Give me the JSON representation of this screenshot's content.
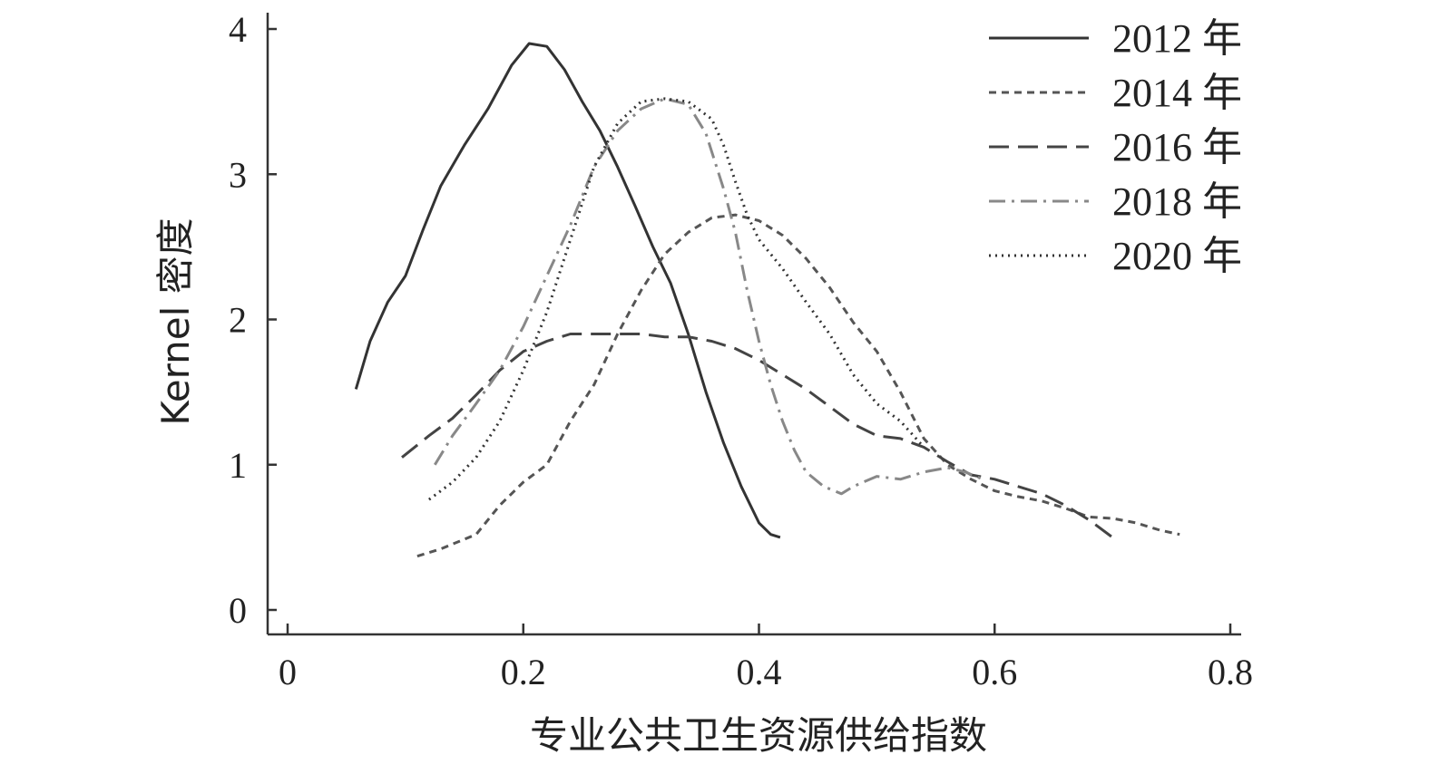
{
  "chart_data": {
    "type": "line",
    "title": "",
    "xlabel": "专业公共卫生资源供给指数",
    "ylabel": "Kernel 密度",
    "xlim": [
      0,
      0.8
    ],
    "ylim": [
      0,
      4
    ],
    "xticks": [
      "0",
      "0.2",
      "0.4",
      "0.6",
      "0.8"
    ],
    "yticks": [
      "0",
      "1",
      "2",
      "3",
      "4"
    ],
    "grid": false,
    "legend_position": "top-right",
    "series": [
      {
        "name": "2012 年",
        "color": "#333333",
        "style": "solid",
        "points": [
          [
            0.058,
            1.52
          ],
          [
            0.07,
            1.85
          ],
          [
            0.085,
            2.12
          ],
          [
            0.1,
            2.3
          ],
          [
            0.115,
            2.62
          ],
          [
            0.13,
            2.92
          ],
          [
            0.15,
            3.2
          ],
          [
            0.17,
            3.45
          ],
          [
            0.19,
            3.75
          ],
          [
            0.205,
            3.9
          ],
          [
            0.22,
            3.88
          ],
          [
            0.235,
            3.72
          ],
          [
            0.25,
            3.5
          ],
          [
            0.265,
            3.3
          ],
          [
            0.28,
            3.05
          ],
          [
            0.295,
            2.78
          ],
          [
            0.31,
            2.5
          ],
          [
            0.325,
            2.25
          ],
          [
            0.34,
            1.9
          ],
          [
            0.355,
            1.5
          ],
          [
            0.37,
            1.15
          ],
          [
            0.385,
            0.85
          ],
          [
            0.4,
            0.6
          ],
          [
            0.41,
            0.52
          ],
          [
            0.418,
            0.5
          ]
        ]
      },
      {
        "name": "2014 年",
        "color": "#555555",
        "style": "short-dash",
        "points": [
          [
            0.11,
            0.37
          ],
          [
            0.13,
            0.42
          ],
          [
            0.16,
            0.52
          ],
          [
            0.18,
            0.72
          ],
          [
            0.2,
            0.88
          ],
          [
            0.22,
            1.0
          ],
          [
            0.24,
            1.3
          ],
          [
            0.26,
            1.55
          ],
          [
            0.28,
            1.9
          ],
          [
            0.3,
            2.2
          ],
          [
            0.32,
            2.45
          ],
          [
            0.34,
            2.6
          ],
          [
            0.36,
            2.7
          ],
          [
            0.38,
            2.72
          ],
          [
            0.4,
            2.68
          ],
          [
            0.42,
            2.58
          ],
          [
            0.44,
            2.42
          ],
          [
            0.46,
            2.22
          ],
          [
            0.48,
            1.98
          ],
          [
            0.5,
            1.78
          ],
          [
            0.52,
            1.5
          ],
          [
            0.54,
            1.18
          ],
          [
            0.56,
            1.0
          ],
          [
            0.58,
            0.9
          ],
          [
            0.6,
            0.82
          ],
          [
            0.62,
            0.78
          ],
          [
            0.64,
            0.75
          ],
          [
            0.66,
            0.7
          ],
          [
            0.68,
            0.64
          ],
          [
            0.7,
            0.63
          ],
          [
            0.72,
            0.6
          ],
          [
            0.74,
            0.55
          ],
          [
            0.757,
            0.52
          ]
        ]
      },
      {
        "name": "2016 年",
        "color": "#444444",
        "style": "long-dash",
        "points": [
          [
            0.097,
            1.05
          ],
          [
            0.12,
            1.2
          ],
          [
            0.14,
            1.32
          ],
          [
            0.16,
            1.48
          ],
          [
            0.18,
            1.65
          ],
          [
            0.2,
            1.78
          ],
          [
            0.22,
            1.85
          ],
          [
            0.24,
            1.9
          ],
          [
            0.26,
            1.9
          ],
          [
            0.28,
            1.9
          ],
          [
            0.3,
            1.9
          ],
          [
            0.32,
            1.88
          ],
          [
            0.34,
            1.88
          ],
          [
            0.36,
            1.85
          ],
          [
            0.38,
            1.8
          ],
          [
            0.4,
            1.72
          ],
          [
            0.42,
            1.62
          ],
          [
            0.44,
            1.52
          ],
          [
            0.46,
            1.4
          ],
          [
            0.48,
            1.28
          ],
          [
            0.5,
            1.2
          ],
          [
            0.52,
            1.18
          ],
          [
            0.54,
            1.12
          ],
          [
            0.56,
            1.02
          ],
          [
            0.58,
            0.93
          ],
          [
            0.6,
            0.9
          ],
          [
            0.62,
            0.85
          ],
          [
            0.64,
            0.8
          ],
          [
            0.66,
            0.72
          ],
          [
            0.68,
            0.62
          ],
          [
            0.7,
            0.5
          ],
          [
            0.703,
            0.48
          ]
        ]
      },
      {
        "name": "2018 年",
        "color": "#888888",
        "style": "dash-dot",
        "points": [
          [
            0.125,
            1.0
          ],
          [
            0.14,
            1.2
          ],
          [
            0.16,
            1.42
          ],
          [
            0.18,
            1.65
          ],
          [
            0.2,
            1.95
          ],
          [
            0.22,
            2.3
          ],
          [
            0.24,
            2.65
          ],
          [
            0.26,
            3.05
          ],
          [
            0.28,
            3.3
          ],
          [
            0.3,
            3.45
          ],
          [
            0.32,
            3.52
          ],
          [
            0.34,
            3.48
          ],
          [
            0.355,
            3.28
          ],
          [
            0.37,
            2.9
          ],
          [
            0.38,
            2.6
          ],
          [
            0.39,
            2.2
          ],
          [
            0.4,
            1.85
          ],
          [
            0.41,
            1.55
          ],
          [
            0.42,
            1.3
          ],
          [
            0.43,
            1.1
          ],
          [
            0.44,
            0.95
          ],
          [
            0.455,
            0.85
          ],
          [
            0.47,
            0.8
          ],
          [
            0.48,
            0.85
          ],
          [
            0.5,
            0.92
          ],
          [
            0.52,
            0.9
          ],
          [
            0.54,
            0.95
          ],
          [
            0.56,
            0.98
          ],
          [
            0.575,
            0.95
          ],
          [
            0.59,
            0.9
          ]
        ]
      },
      {
        "name": "2020 年",
        "color": "#333333",
        "style": "dotted",
        "points": [
          [
            0.12,
            0.76
          ],
          [
            0.14,
            0.88
          ],
          [
            0.16,
            1.05
          ],
          [
            0.18,
            1.3
          ],
          [
            0.2,
            1.65
          ],
          [
            0.22,
            2.05
          ],
          [
            0.24,
            2.55
          ],
          [
            0.26,
            3.05
          ],
          [
            0.28,
            3.35
          ],
          [
            0.3,
            3.5
          ],
          [
            0.32,
            3.52
          ],
          [
            0.34,
            3.5
          ],
          [
            0.36,
            3.38
          ],
          [
            0.37,
            3.2
          ],
          [
            0.38,
            2.95
          ],
          [
            0.39,
            2.72
          ],
          [
            0.4,
            2.55
          ],
          [
            0.42,
            2.35
          ],
          [
            0.44,
            2.12
          ],
          [
            0.46,
            1.9
          ],
          [
            0.48,
            1.62
          ],
          [
            0.5,
            1.42
          ],
          [
            0.52,
            1.3
          ],
          [
            0.54,
            1.12
          ]
        ]
      }
    ]
  }
}
